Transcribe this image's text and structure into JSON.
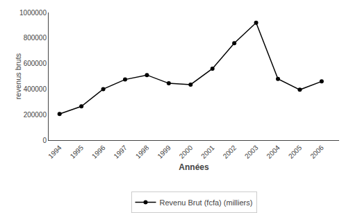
{
  "chart_data": {
    "type": "line",
    "x": [
      1994,
      1995,
      1996,
      1997,
      1998,
      1999,
      2000,
      2001,
      2002,
      2003,
      2004,
      2005,
      2006
    ],
    "series": [
      {
        "name": "Revenu Brut (fcfa) (milliers)",
        "color": "#000000",
        "marker": "circle",
        "values": [
          205000,
          265000,
          400000,
          475000,
          510000,
          445000,
          435000,
          560000,
          760000,
          920000,
          480000,
          395000,
          460000
        ]
      }
    ],
    "xlabel": "Années",
    "ylabel": "revenus bruts",
    "xlim": [
      1993.5,
      2006.8
    ],
    "xticks": [
      1994,
      1995,
      1996,
      1997,
      1998,
      1999,
      2000,
      2001,
      2002,
      2003,
      2004,
      2005,
      2006
    ],
    "ylim": [
      0,
      1000000
    ],
    "yticks": [
      0,
      200000,
      400000,
      600000,
      800000,
      1000000
    ],
    "grid": false,
    "legend": "bottom"
  }
}
